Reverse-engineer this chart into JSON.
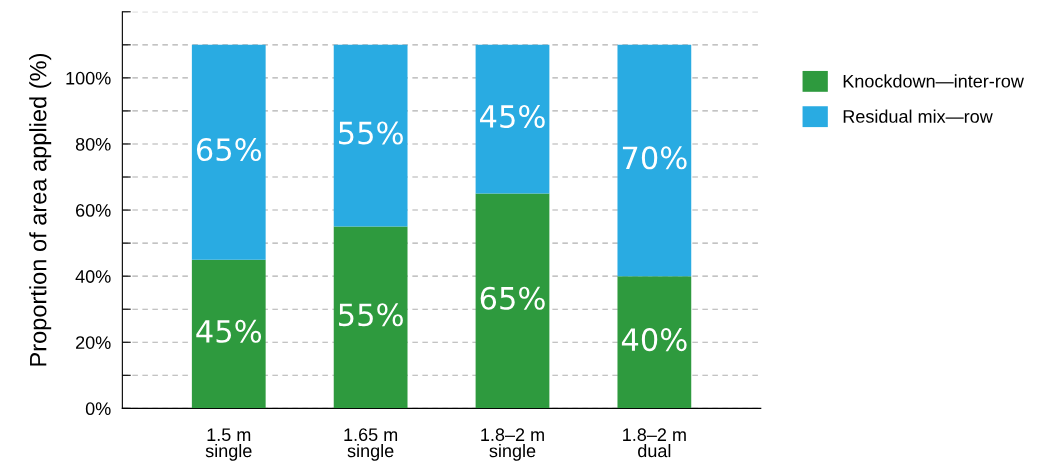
{
  "chart_data": {
    "type": "bar",
    "stacked": true,
    "ylabel": "Proportion of area applied (%)",
    "categories": [
      "1.5 m\nsingle",
      "1.65 m\nsingle",
      "1.8–2 m\nsingle",
      "1.8–2 m\ndual"
    ],
    "series": [
      {
        "name": "Knockdown—inter-row",
        "color": "#2e9a3e",
        "values": [
          45,
          55,
          65,
          40
        ],
        "value_labels": [
          "45%",
          "55%",
          "65%",
          "40%"
        ]
      },
      {
        "name": "Residual mix—row",
        "color": "#29abe2",
        "values": [
          65,
          55,
          45,
          70
        ],
        "value_labels": [
          "65%",
          "55%",
          "45%",
          "70%"
        ]
      }
    ],
    "ylim": [
      0,
      120
    ],
    "yticks": [
      {
        "value": 0,
        "label": "0%"
      },
      {
        "value": 10,
        "label": null
      },
      {
        "value": 20,
        "label": "20%"
      },
      {
        "value": 30,
        "label": null
      },
      {
        "value": 40,
        "label": "40%"
      },
      {
        "value": 50,
        "label": null
      },
      {
        "value": 60,
        "label": "60%"
      },
      {
        "value": 70,
        "label": null
      },
      {
        "value": 80,
        "label": "80%"
      },
      {
        "value": 90,
        "label": null
      },
      {
        "value": 100,
        "label": "100%"
      },
      {
        "value": 110,
        "label": null
      },
      {
        "value": 120,
        "label": null
      }
    ],
    "grid": "y",
    "legend": "right"
  }
}
